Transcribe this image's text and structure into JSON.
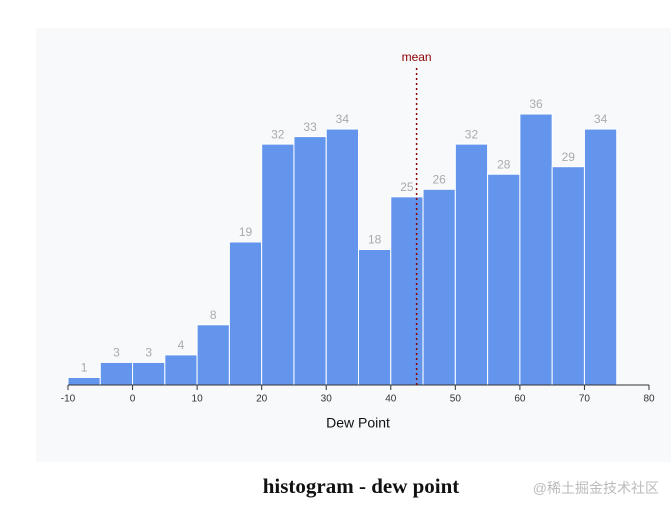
{
  "chart_data": {
    "type": "histogram",
    "xlabel": "Dew Point",
    "bins": [
      -10,
      -5,
      0,
      5,
      10,
      15,
      20,
      25,
      30,
      35,
      40,
      45,
      50,
      55,
      60,
      65,
      70,
      75
    ],
    "values": [
      1,
      3,
      3,
      4,
      8,
      19,
      32,
      33,
      34,
      18,
      25,
      26,
      32,
      28,
      36,
      29,
      34
    ],
    "color": "#6495ed",
    "xlim": [
      -10,
      80
    ],
    "xticks": [
      -10,
      0,
      10,
      20,
      30,
      40,
      50,
      60,
      70,
      80
    ],
    "mean": {
      "label": "mean",
      "value": 44,
      "color": "#8b0000"
    }
  },
  "caption": "histogram - dew point",
  "watermark": "@稀土掘金技术社区"
}
